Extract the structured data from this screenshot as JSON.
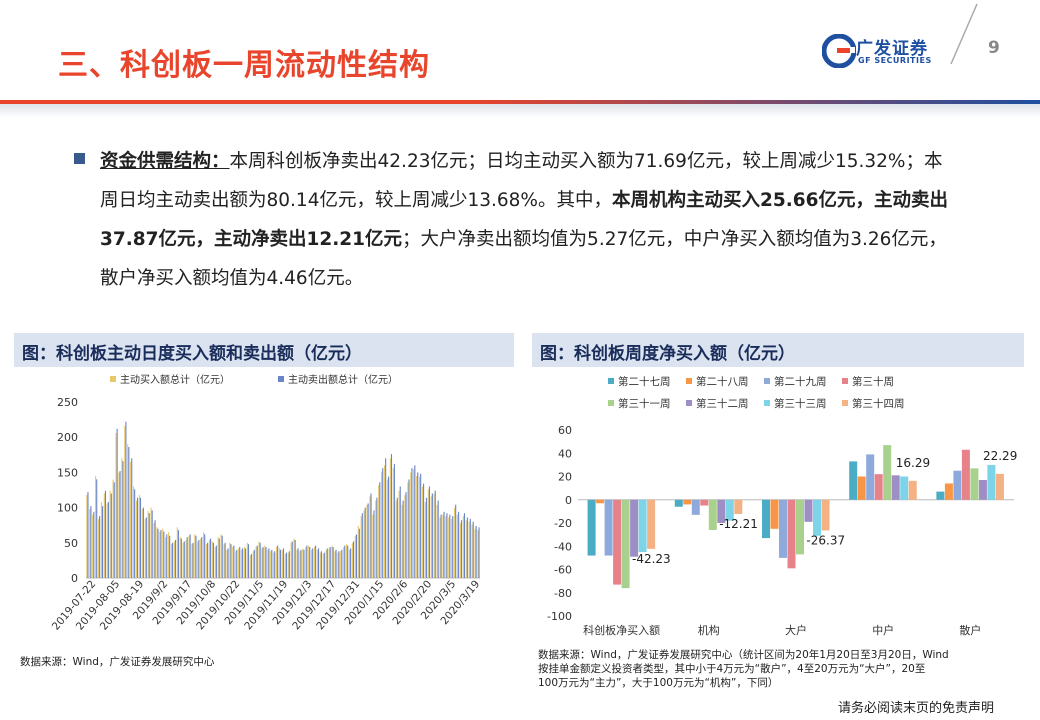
{
  "header": {
    "title": "三、科创板一周流动性结构",
    "logo_cn": "广发证券",
    "logo_en": "GF SECURITIES",
    "page_number": "9",
    "accent_red": "#e8452c",
    "accent_blue": "#1e4fa0"
  },
  "summary": {
    "keyword": "资金供需结构：",
    "part1": "本周科创板净卖出42.23亿元；日均主动买入额为71.69亿元，较上周减少15.32%；本周日均主动卖出额为80.14亿元，较上周减少13.68%。其中，",
    "bold1": "本周机构主动买入25.66亿元，主动卖出37.87亿元，主动净卖出12.21亿元",
    "part2": "；大户净卖出额均值为5.27亿元，中户净买入额均值为3.26亿元，散户净买入额均值为4.46亿元。"
  },
  "panels": {
    "left_title": "图：科创板主动日度买入额和卖出额（亿元）",
    "right_title": "图：科创板周度净买入额（亿元）",
    "left_source": "数据来源：Wind，广发证券发展研究中心",
    "right_source_lines": [
      "数据来源：Wind，广发证券发展研究中心（统计区间为20年1月20日至3月20日，Wind",
      "按挂单金额定义投资者类型，其中小于4万元为“散户”，4至20万元为“大户”，20至",
      "100万元为“主力”，大于100万元为“机构”，下同）"
    ]
  },
  "disclaimer": "请务必阅读末页的免责声明",
  "chart_data": [
    {
      "type": "bar",
      "title": "图：科创板主动日度买入额和卖出额（亿元）",
      "legend": [
        "主动买入额总计（亿元）",
        "主动卖出额总计（亿元）"
      ],
      "legend_placement": "top",
      "colors": [
        "#e8c96a",
        "#6a86c9"
      ],
      "ylim": [
        0,
        250
      ],
      "yticks": [
        0,
        50,
        100,
        150,
        200,
        250
      ],
      "xticks": [
        "2019-07-22",
        "2019-08-05",
        "2019-08-19",
        "2019/9/2",
        "2019/9/17",
        "2019/10/8",
        "2019/10/22",
        "2019/11/5",
        "2019/11/19",
        "2019/12/3",
        "2019/12/17",
        "2019/12/31",
        "2020/1/15",
        "2020/2/6",
        "2020/2/20",
        "2020/3/5",
        "2020/3/19"
      ],
      "series": [
        {
          "name": "主动买入额总计（亿元）",
          "values": [
            118,
            98,
            90,
            145,
            84,
            108,
            120,
            106,
            124,
            140,
            206,
            150,
            170,
            216,
            190,
            165,
            130,
            110,
            118,
            98,
            84,
            95,
            100,
            78,
            72,
            66,
            70,
            58,
            65,
            48,
            52,
            72,
            58,
            50,
            54,
            60,
            48,
            62,
            52,
            56,
            65,
            48,
            54,
            52,
            44,
            58,
            62,
            48,
            40,
            50,
            44,
            38,
            42,
            40,
            44,
            50,
            32,
            38,
            44,
            52,
            42,
            46,
            40,
            38,
            36,
            44,
            42,
            40,
            34,
            36,
            50,
            56,
            40,
            38,
            42,
            44,
            46,
            40,
            44,
            40,
            36,
            34,
            40,
            42,
            46,
            38,
            36,
            38,
            44,
            48,
            40,
            50,
            60,
            74,
            88,
            96,
            104,
            116,
            90,
            110,
            132,
            150,
            160,
            140,
            170,
            156,
            110,
            124,
            104,
            118,
            136,
            150,
            155,
            145,
            144,
            130,
            108,
            126,
            116,
            120,
            104,
            86,
            90,
            88,
            86,
            84,
            100,
            90,
            78,
            88,
            82,
            80,
            76,
            70,
            68
          ]
        },
        {
          "name": "主动卖出额总计（亿元）",
          "values": [
            122,
            102,
            94,
            140,
            88,
            102,
            124,
            108,
            120,
            136,
            212,
            152,
            166,
            222,
            186,
            170,
            126,
            114,
            114,
            100,
            86,
            92,
            96,
            82,
            70,
            68,
            66,
            62,
            60,
            50,
            54,
            68,
            56,
            52,
            58,
            62,
            50,
            60,
            54,
            58,
            62,
            50,
            56,
            50,
            46,
            56,
            60,
            50,
            42,
            48,
            46,
            40,
            44,
            42,
            42,
            48,
            34,
            40,
            46,
            50,
            44,
            44,
            42,
            40,
            38,
            46,
            40,
            42,
            36,
            38,
            52,
            54,
            42,
            40,
            40,
            46,
            44,
            42,
            46,
            42,
            38,
            36,
            42,
            44,
            44,
            40,
            38,
            40,
            46,
            46,
            42,
            52,
            62,
            70,
            92,
            100,
            106,
            120,
            96,
            114,
            136,
            156,
            170,
            144,
            176,
            162,
            114,
            130,
            110,
            122,
            140,
            156,
            160,
            150,
            148,
            134,
            114,
            130,
            120,
            124,
            110,
            90,
            94,
            92,
            90,
            88,
            104,
            94,
            82,
            92,
            86,
            84,
            80,
            74,
            72
          ]
        }
      ]
    },
    {
      "type": "bar",
      "title": "图：科创板周度净买入额（亿元）",
      "legend": [
        "第二十七周",
        "第二十八周",
        "第二十九周",
        "第三十周",
        "第三十一周",
        "第三十二周",
        "第三十三周",
        "第三十四周"
      ],
      "legend_placement": "top",
      "colors": [
        "#4bacc6",
        "#f79646",
        "#8ea9db",
        "#e8828a",
        "#a9d18e",
        "#9d8ec4",
        "#7dd3e8",
        "#f4b183"
      ],
      "categories": [
        "科创板净买入额",
        "机构",
        "大户",
        "中户",
        "散户"
      ],
      "ylim": [
        -100,
        60
      ],
      "yticks": [
        60,
        40,
        20,
        0,
        -20,
        -40,
        -60,
        -80,
        -100
      ],
      "annotations": [
        "-42.23",
        "-12.21",
        "-26.37",
        "16.29",
        "22.29"
      ],
      "series": [
        {
          "name": "第二十七周",
          "values": [
            -48,
            -6,
            -33,
            33,
            7
          ]
        },
        {
          "name": "第二十八周",
          "values": [
            -3,
            -4,
            -25,
            20,
            14
          ]
        },
        {
          "name": "第二十九周",
          "values": [
            -48,
            -13,
            -50,
            39,
            25
          ]
        },
        {
          "name": "第三十周",
          "values": [
            -73,
            -5,
            -59,
            22,
            43
          ]
        },
        {
          "name": "第三十一周",
          "values": [
            -76,
            -26,
            -47,
            47,
            27
          ]
        },
        {
          "name": "第三十二周",
          "values": [
            -49,
            -20,
            -19,
            21,
            17
          ]
        },
        {
          "name": "第三十三周",
          "values": [
            -45,
            -18,
            -31,
            20,
            30
          ]
        },
        {
          "name": "第三十四周",
          "values": [
            -42.23,
            -12.21,
            -26.37,
            16.29,
            22.29
          ]
        }
      ]
    }
  ]
}
